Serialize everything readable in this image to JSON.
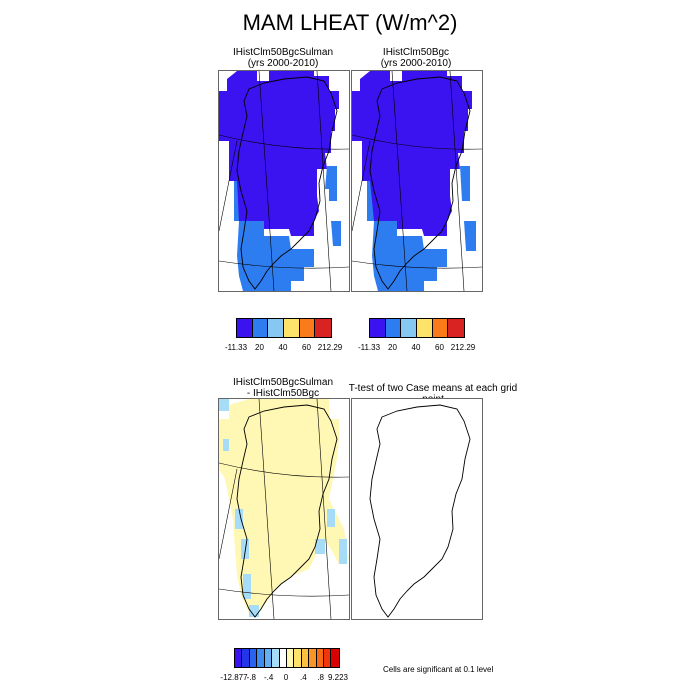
{
  "title": "MAM LHEAT (W/m^2)",
  "panels": {
    "top_left": {
      "line1": "IHistClm50BgcSulman",
      "line2": "(yrs 2000-2010)"
    },
    "top_right": {
      "line1": "IHistClm50Bgc",
      "line2": "(yrs 2000-2010)"
    },
    "diff": {
      "line1": "IHistClm50BgcSulman",
      "line2": "- IHistClm50Bgc"
    },
    "ttest": {
      "label": "T-test of two Case means at each grid point"
    }
  },
  "colorbar_top": {
    "colors": [
      "#3a13f0",
      "#2e7df0",
      "#86c8f2",
      "#fde36a",
      "#fb7b1a",
      "#d92222"
    ],
    "labels": [
      "-11.33",
      "20",
      "40",
      "60",
      "212.29"
    ]
  },
  "colorbar_bottom": {
    "colors": [
      "#3a13f0",
      "#2236e8",
      "#2a62f0",
      "#3c8cf4",
      "#64b0f4",
      "#a6dcf8",
      "#ffffff",
      "#fff7b4",
      "#fde36a",
      "#fbc040",
      "#f99526",
      "#f86a16",
      "#f2360c",
      "#d80000"
    ],
    "labels": [
      "-12.877",
      "-.8",
      "-.4",
      "0",
      ".4",
      ".8",
      "9.223"
    ]
  },
  "significance_note": "Cells are significant at 0.1 level",
  "colors": {
    "deep_blue": "#3a13f0",
    "mid_blue": "#2e7df0",
    "light_blue": "#86c8f2",
    "pale_yellow": "#fff7b4"
  }
}
